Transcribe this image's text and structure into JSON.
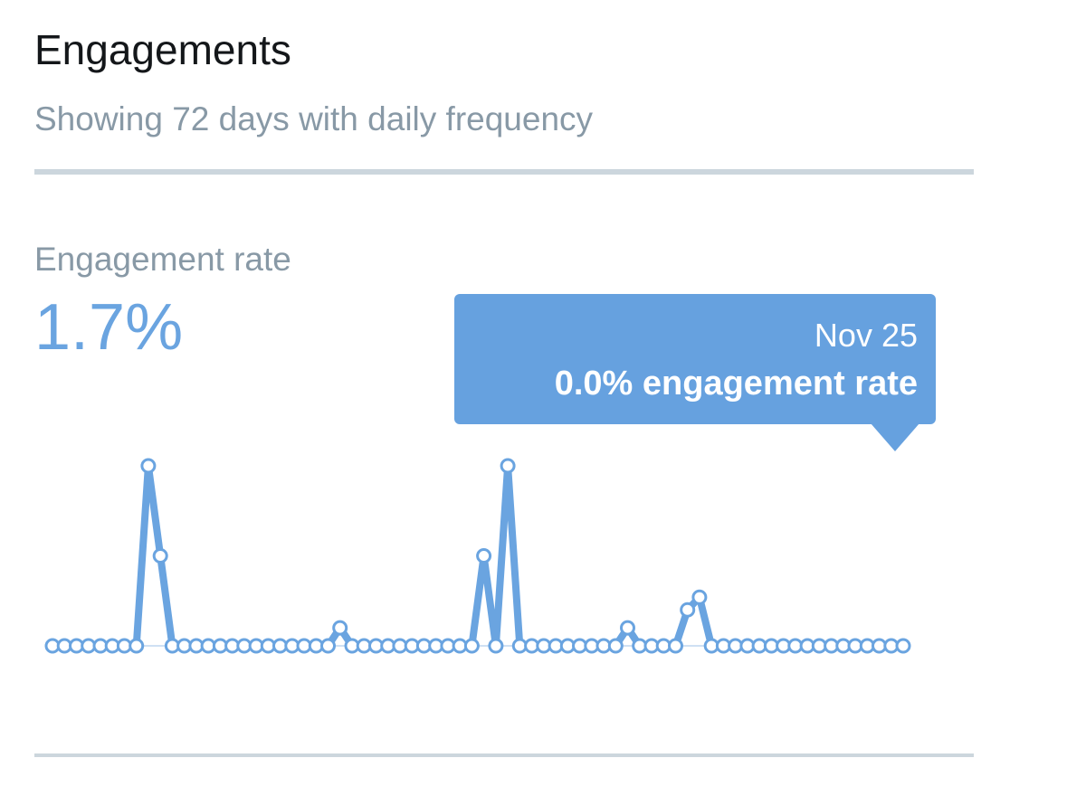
{
  "header": {
    "title": "Engagements",
    "subtitle": "Showing 72 days with daily frequency"
  },
  "metric": {
    "label": "Engagement rate",
    "value": "1.7%"
  },
  "tooltip": {
    "date": "Nov 25",
    "value_text": "0.0% engagement rate"
  },
  "colors": {
    "line": "#6aa4e0",
    "marker_fill": "#ffffff",
    "tooltip_bg": "#66a1df",
    "divider": "#ccd6dd"
  },
  "chart_data": {
    "type": "line",
    "grid": false,
    "ylim": [
      0,
      1
    ],
    "series": [
      {
        "values": [
          0,
          0,
          0,
          0,
          0,
          0,
          0,
          0,
          1,
          0.5,
          0,
          0,
          0,
          0,
          0,
          0,
          0,
          0,
          0,
          0,
          0,
          0,
          0,
          0,
          0.1,
          0,
          0,
          0,
          0,
          0,
          0,
          0,
          0,
          0,
          0,
          0,
          0.5,
          0,
          1,
          0,
          0,
          0,
          0,
          0,
          0,
          0,
          0,
          0,
          0.1,
          0,
          0,
          0,
          0,
          0.2,
          0.27,
          0,
          0,
          0,
          0,
          0,
          0,
          0,
          0,
          0,
          0,
          0,
          0,
          0,
          0,
          0,
          0,
          0
        ]
      }
    ]
  }
}
